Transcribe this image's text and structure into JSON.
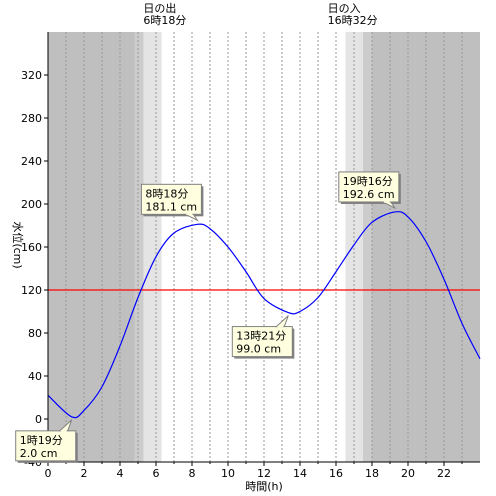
{
  "chart_data": {
    "type": "line",
    "xlabel": "時間(h)",
    "ylabel": "水位(cm)",
    "xlim": [
      0,
      24
    ],
    "ylim": [
      -40,
      360
    ],
    "x_ticks": [
      0,
      2,
      4,
      6,
      8,
      10,
      12,
      14,
      16,
      18,
      20,
      22
    ],
    "y_ticks": [
      -40,
      0,
      40,
      80,
      120,
      160,
      200,
      240,
      280,
      320
    ],
    "grid": "vertical-dotted-hourly",
    "sunrise": {
      "label": "日の出",
      "time": "6時18分",
      "hour": 6.3
    },
    "sunset": {
      "label": "日の入",
      "time": "16時32分",
      "hour": 16.533
    },
    "twilight_bands": [
      [
        4.8,
        5.3
      ],
      [
        5.3,
        6.3
      ],
      [
        16.533,
        17.5
      ],
      [
        17.5,
        18.0
      ]
    ],
    "reference_level": 120,
    "colors": {
      "tide": "#0000ff",
      "reference": "#ff0000",
      "night": "#bfbfbf",
      "twilight_dark": "#cccccc",
      "twilight_light": "#e4e4e4",
      "label_bg": "#ffffe0"
    },
    "series": [
      {
        "x": [
          0,
          1.317,
          2,
          3,
          4,
          5,
          6,
          7,
          8.3,
          9,
          10,
          11,
          12,
          13.35,
          14,
          15,
          16,
          17,
          18,
          19.267,
          20,
          21,
          22,
          23,
          24
        ],
        "y": [
          22,
          2.0,
          8,
          30,
          68,
          113,
          151,
          173,
          181.1,
          177,
          160,
          137,
          112,
          99.0,
          100,
          113,
          137,
          162,
          183,
          192.6,
          188,
          165,
          130,
          89,
          56
        ]
      }
    ],
    "annotations": [
      {
        "time": "1時19分",
        "value": "2.0 cm",
        "x": 1.317,
        "y": 2.0,
        "placement": "below-left"
      },
      {
        "time": "8時18分",
        "value": "181.1 cm",
        "x": 8.3,
        "y": 181.1,
        "placement": "above-left"
      },
      {
        "time": "13時21分",
        "value": "99.0 cm",
        "x": 13.35,
        "y": 99.0,
        "placement": "below-left"
      },
      {
        "time": "19時16分",
        "value": "192.6 cm",
        "x": 19.267,
        "y": 192.6,
        "placement": "above-left"
      }
    ]
  }
}
